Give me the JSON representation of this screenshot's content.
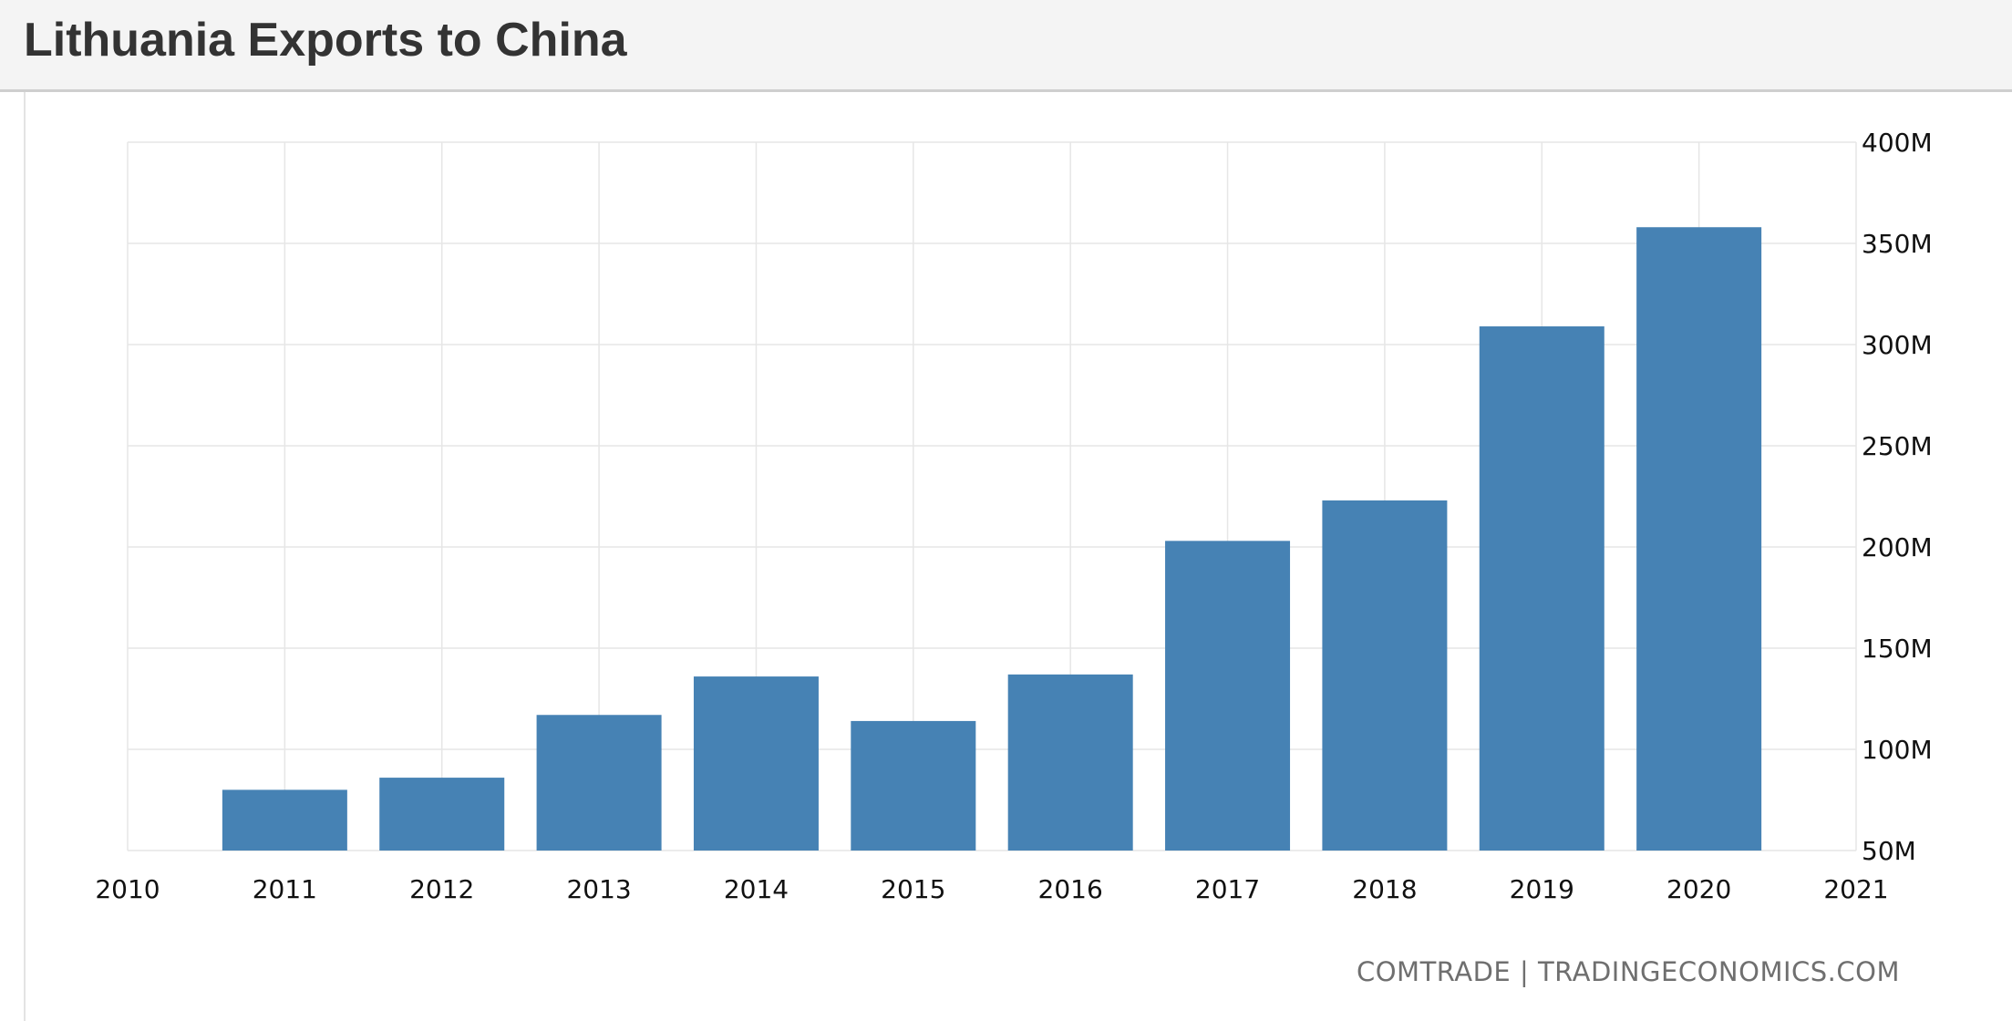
{
  "header": {
    "title": "Lithuania Exports to China"
  },
  "source": "COMTRADE | TRADINGECONOMICS.COM",
  "colors": {
    "bar": "#4682b4",
    "grid": "#e6e6e6",
    "header_bg": "#f4f4f4",
    "title": "#333333",
    "source": "#6f6f6f"
  },
  "chart_data": {
    "type": "bar",
    "title": "Lithuania Exports to China",
    "xlabel": "",
    "ylabel": "",
    "x_ticks": [
      "2010",
      "2011",
      "2012",
      "2013",
      "2014",
      "2015",
      "2016",
      "2017",
      "2018",
      "2019",
      "2020",
      "2021"
    ],
    "xlim": [
      2010,
      2021
    ],
    "categories": [
      "2011",
      "2012",
      "2013",
      "2014",
      "2015",
      "2016",
      "2017",
      "2018",
      "2019",
      "2020"
    ],
    "values": [
      80,
      86,
      117,
      136,
      114,
      137,
      203,
      223,
      309,
      358
    ],
    "value_unit": "M",
    "ylim": [
      50,
      400
    ],
    "y_ticks": [
      50,
      100,
      150,
      200,
      250,
      300,
      350,
      400
    ],
    "y_tick_labels": [
      "50M",
      "100M",
      "150M",
      "200M",
      "250M",
      "300M",
      "350M",
      "400M"
    ],
    "y_axis_position": "right",
    "grid": true,
    "legend": "none"
  }
}
